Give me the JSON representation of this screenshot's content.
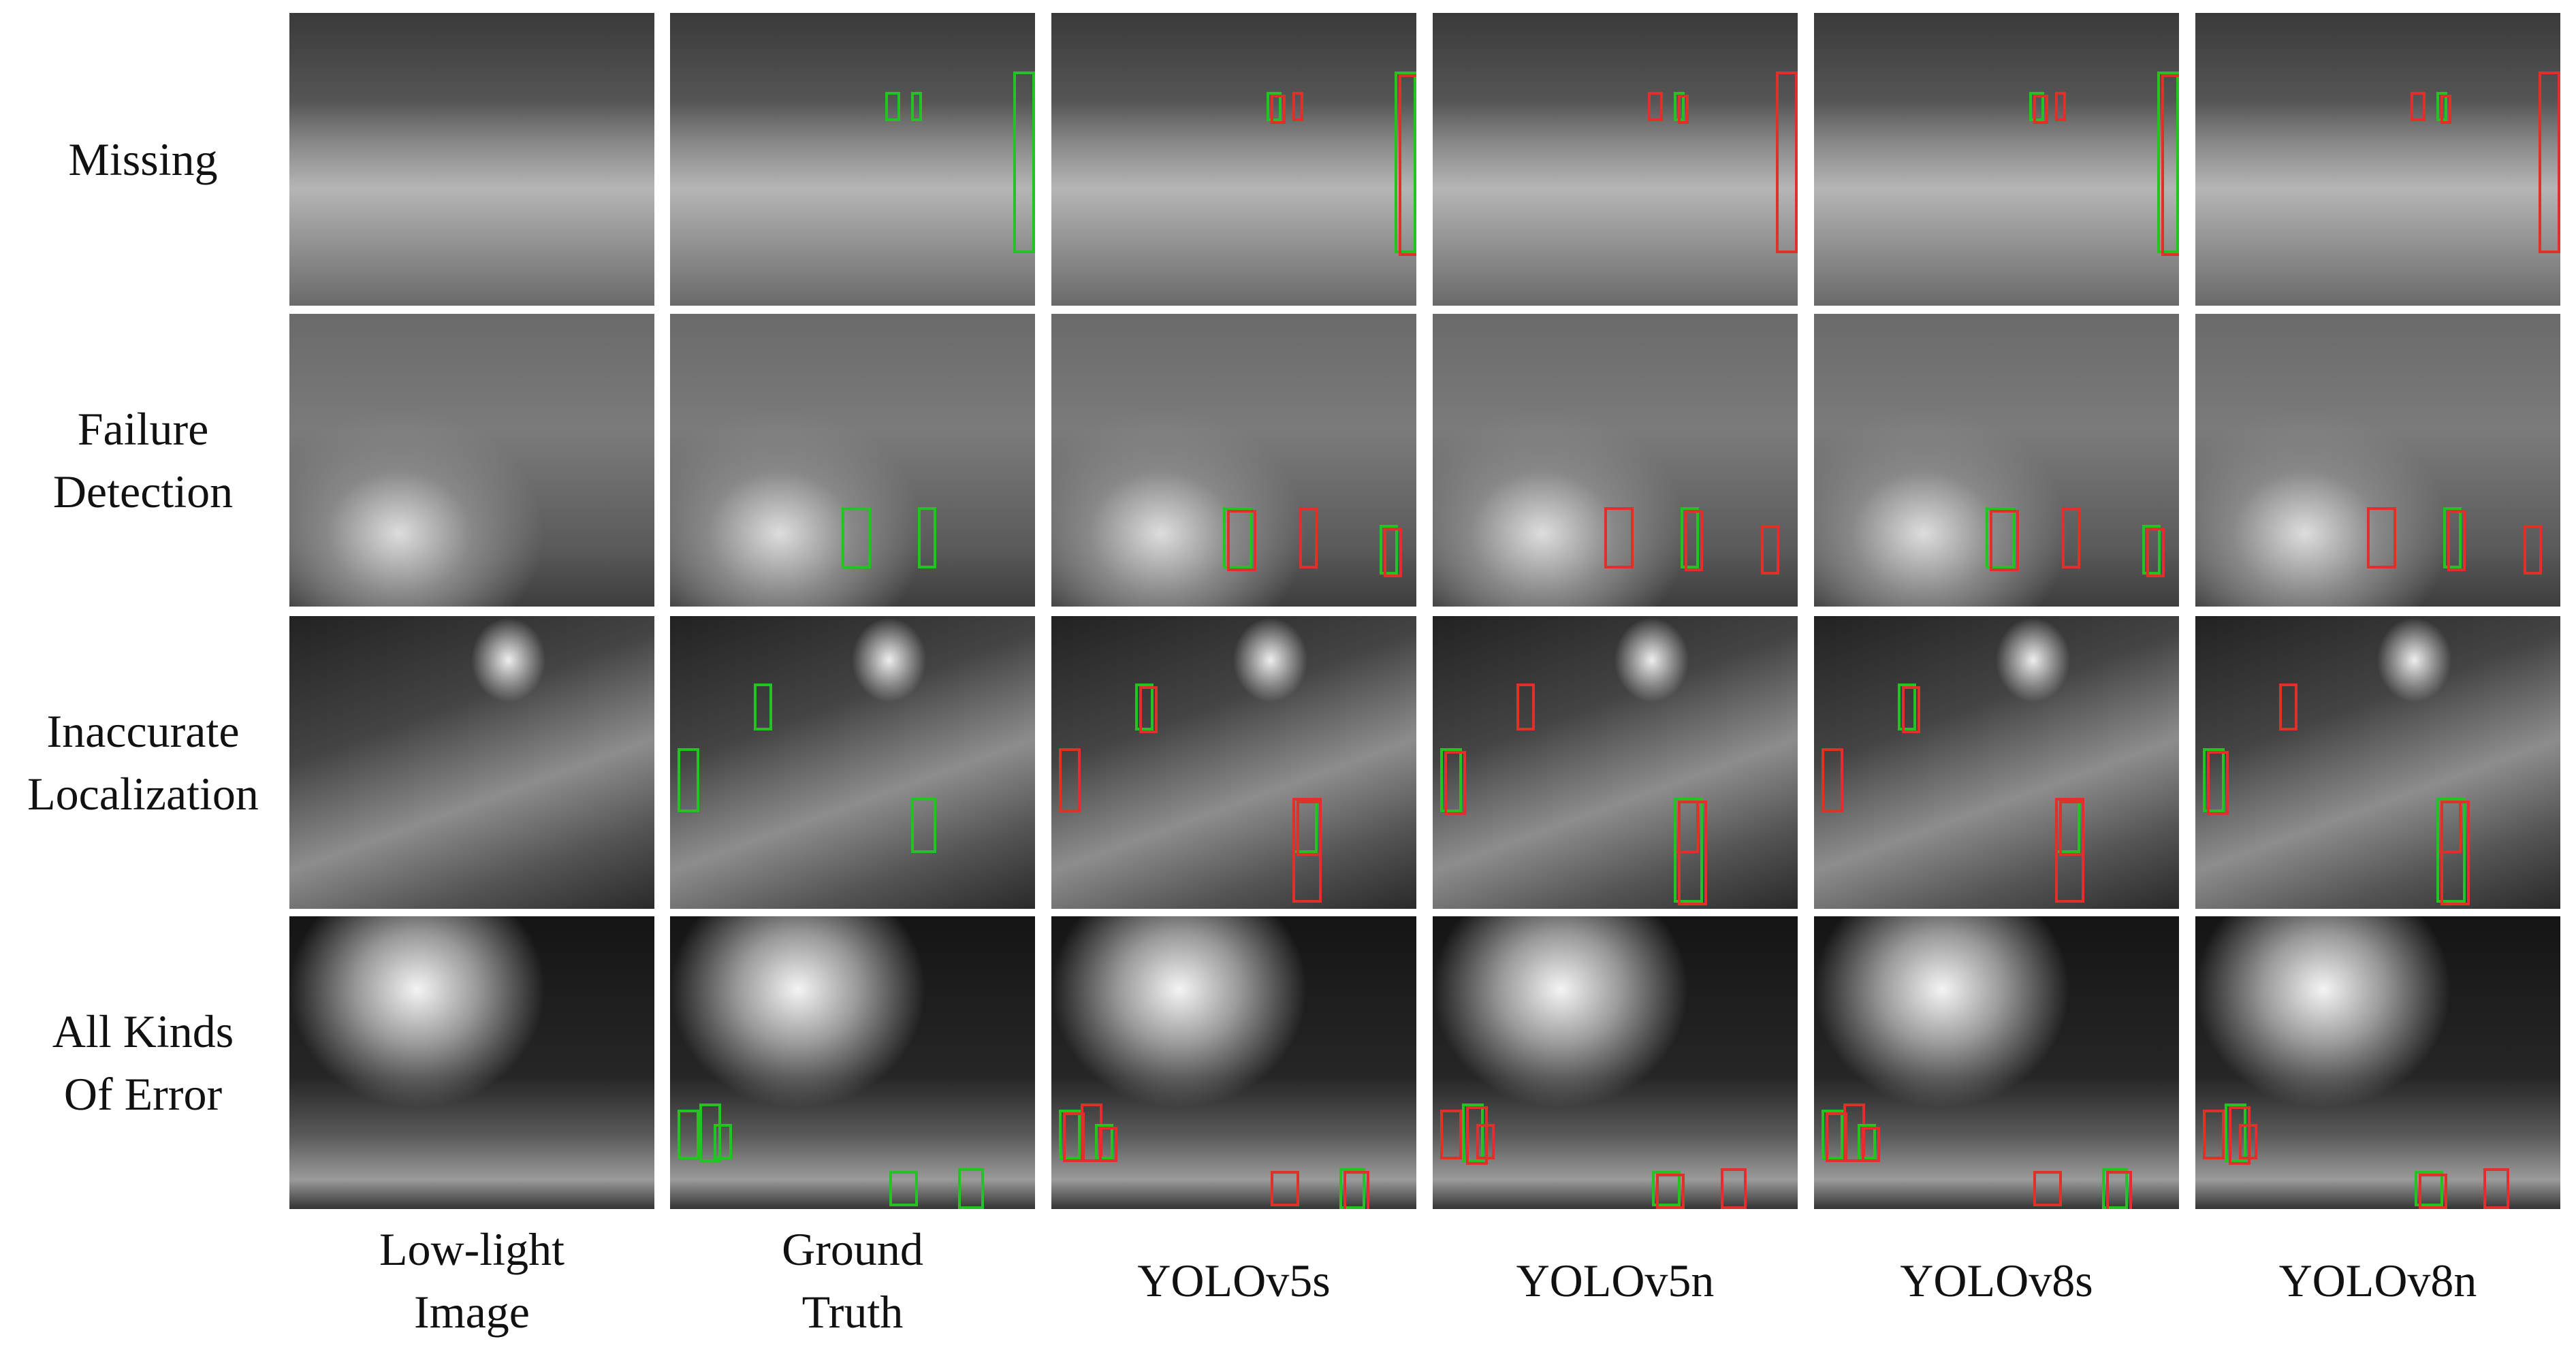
{
  "row_labels": [
    [
      "Missing"
    ],
    [
      "Failure",
      "Detection"
    ],
    [
      "Inaccurate",
      "Localization"
    ],
    [
      "All Kinds",
      "Of Error"
    ]
  ],
  "column_labels": [
    [
      "Low-light",
      "Image"
    ],
    [
      "Ground",
      "Truth"
    ],
    [
      "YOLOv5s"
    ],
    [
      "YOLOv5n"
    ],
    [
      "YOLOv8s"
    ],
    [
      "YOLOv8n"
    ]
  ]
}
